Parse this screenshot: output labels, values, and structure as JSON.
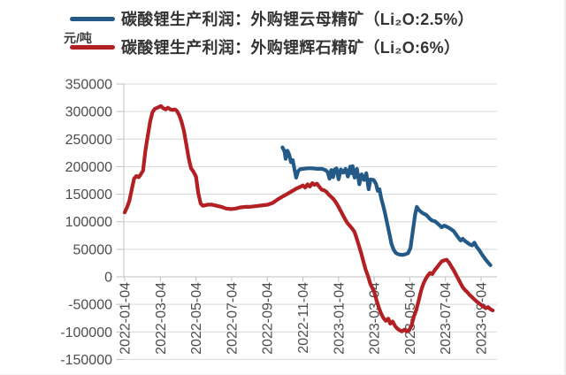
{
  "page": {
    "background": "#ffffff"
  },
  "chart_data": {
    "type": "line",
    "title": "",
    "unit_label": "元/吨",
    "grid": true,
    "legend_position": "top-left",
    "colors": {
      "grid": "#D9D9D9",
      "axis": "#BFBFBF",
      "tick_text": "#4D4D4D"
    },
    "y_axis": {
      "min": -150000,
      "max": 350000,
      "tick_step": 50000,
      "ticks": [
        350000,
        300000,
        250000,
        200000,
        150000,
        100000,
        50000,
        0,
        -50000,
        -100000,
        -150000
      ]
    },
    "x_axis": {
      "ticks": [
        "2022-01-04",
        "2022-03-04",
        "2022-05-04",
        "2022-07-04",
        "2022-09-04",
        "2022-11-04",
        "2023-01-04",
        "2023-03-04",
        "2023-05-04",
        "2023-07-04",
        "2023-09-04"
      ]
    },
    "series": [
      {
        "name": "碳酸锂生产利润：外购锂云母精矿（Li₂O:2.5%）",
        "color": "#235A87",
        "points": [
          [
            "2022-09-30",
            235000
          ],
          [
            "2022-10-03",
            228000
          ],
          [
            "2022-10-05",
            214000
          ],
          [
            "2022-10-08",
            229000
          ],
          [
            "2022-10-11",
            222000
          ],
          [
            "2022-10-14",
            208000
          ],
          [
            "2022-10-17",
            212000
          ],
          [
            "2022-10-20",
            196000
          ],
          [
            "2022-10-23",
            180000
          ],
          [
            "2022-10-26",
            191000
          ],
          [
            "2022-10-29",
            195000
          ],
          [
            "2022-11-04",
            196000
          ],
          [
            "2022-11-12",
            197000
          ],
          [
            "2022-11-20",
            197000
          ],
          [
            "2022-11-28",
            196000
          ],
          [
            "2022-12-06",
            196000
          ],
          [
            "2022-12-12",
            194000
          ],
          [
            "2022-12-16",
            190000
          ],
          [
            "2022-12-19",
            178000
          ],
          [
            "2022-12-22",
            194000
          ],
          [
            "2022-12-25",
            181000
          ],
          [
            "2022-12-28",
            195000
          ],
          [
            "2022-12-31",
            197000
          ],
          [
            "2023-01-04",
            177000
          ],
          [
            "2023-01-08",
            195000
          ],
          [
            "2023-01-12",
            189000
          ],
          [
            "2023-01-16",
            196000
          ],
          [
            "2023-01-20",
            182000
          ],
          [
            "2023-01-24",
            200000
          ],
          [
            "2023-01-26",
            188000
          ],
          [
            "2023-01-28",
            201000
          ],
          [
            "2023-02-01",
            180000
          ],
          [
            "2023-02-05",
            196000
          ],
          [
            "2023-02-09",
            168000
          ],
          [
            "2023-02-13",
            186000
          ],
          [
            "2023-02-17",
            176000
          ],
          [
            "2023-02-21",
            188000
          ],
          [
            "2023-02-25",
            159000
          ],
          [
            "2023-02-28",
            177000
          ],
          [
            "2023-03-03",
            176000
          ],
          [
            "2023-03-07",
            169000
          ],
          [
            "2023-03-10",
            156000
          ],
          [
            "2023-03-13",
            159000
          ],
          [
            "2023-03-16",
            143000
          ],
          [
            "2023-03-19",
            131000
          ],
          [
            "2023-03-22",
            118000
          ],
          [
            "2023-03-25",
            103000
          ],
          [
            "2023-03-28",
            88000
          ],
          [
            "2023-03-31",
            73000
          ],
          [
            "2023-04-03",
            60000
          ],
          [
            "2023-04-07",
            49000
          ],
          [
            "2023-04-11",
            43000
          ],
          [
            "2023-04-15",
            41000
          ],
          [
            "2023-04-19",
            40000
          ],
          [
            "2023-04-23",
            40000
          ],
          [
            "2023-04-27",
            41000
          ],
          [
            "2023-05-01",
            43000
          ],
          [
            "2023-05-05",
            52000
          ],
          [
            "2023-05-09",
            82000
          ],
          [
            "2023-05-13",
            113000
          ],
          [
            "2023-05-16",
            127000
          ],
          [
            "2023-05-19",
            122000
          ],
          [
            "2023-05-23",
            118000
          ],
          [
            "2023-05-27",
            115000
          ],
          [
            "2023-05-31",
            113000
          ],
          [
            "2023-06-04",
            110000
          ],
          [
            "2023-06-08",
            105000
          ],
          [
            "2023-06-12",
            102000
          ],
          [
            "2023-06-16",
            101000
          ],
          [
            "2023-06-20",
            98000
          ],
          [
            "2023-06-24",
            94000
          ],
          [
            "2023-06-28",
            90000
          ],
          [
            "2023-07-02",
            93000
          ],
          [
            "2023-07-06",
            91000
          ],
          [
            "2023-07-10",
            89000
          ],
          [
            "2023-07-14",
            86000
          ],
          [
            "2023-07-18",
            83000
          ],
          [
            "2023-07-22",
            77000
          ],
          [
            "2023-07-26",
            71000
          ],
          [
            "2023-07-30",
            66000
          ],
          [
            "2023-08-03",
            69000
          ],
          [
            "2023-08-07",
            65000
          ],
          [
            "2023-08-11",
            62000
          ],
          [
            "2023-08-15",
            59000
          ],
          [
            "2023-08-19",
            57000
          ],
          [
            "2023-08-23",
            62000
          ],
          [
            "2023-08-27",
            54000
          ],
          [
            "2023-08-31",
            49000
          ],
          [
            "2023-09-04",
            43000
          ],
          [
            "2023-09-08",
            37000
          ],
          [
            "2023-09-12",
            31000
          ],
          [
            "2023-09-16",
            26000
          ],
          [
            "2023-09-20",
            21000
          ]
        ]
      },
      {
        "name": "碳酸锂生产利润：外购锂辉石精矿（Li₂O:6%）",
        "color": "#B22024",
        "points": [
          [
            "2022-01-04",
            117000
          ],
          [
            "2022-01-08",
            126000
          ],
          [
            "2022-01-12",
            138000
          ],
          [
            "2022-01-16",
            158000
          ],
          [
            "2022-01-20",
            178000
          ],
          [
            "2022-01-24",
            183000
          ],
          [
            "2022-01-28",
            181000
          ],
          [
            "2022-02-01",
            186000
          ],
          [
            "2022-02-05",
            193000
          ],
          [
            "2022-02-09",
            230000
          ],
          [
            "2022-02-13",
            256000
          ],
          [
            "2022-02-17",
            282000
          ],
          [
            "2022-02-21",
            299000
          ],
          [
            "2022-02-25",
            305000
          ],
          [
            "2022-03-01",
            308000
          ],
          [
            "2022-03-05",
            310000
          ],
          [
            "2022-03-09",
            306000
          ],
          [
            "2022-03-13",
            304000
          ],
          [
            "2022-03-17",
            307000
          ],
          [
            "2022-03-21",
            304000
          ],
          [
            "2022-03-25",
            303000
          ],
          [
            "2022-03-29",
            304000
          ],
          [
            "2022-04-02",
            301000
          ],
          [
            "2022-04-06",
            293000
          ],
          [
            "2022-04-10",
            281000
          ],
          [
            "2022-04-14",
            264000
          ],
          [
            "2022-04-18",
            240000
          ],
          [
            "2022-04-22",
            215000
          ],
          [
            "2022-04-26",
            197000
          ],
          [
            "2022-04-30",
            191000
          ],
          [
            "2022-05-04",
            182000
          ],
          [
            "2022-05-08",
            152000
          ],
          [
            "2022-05-12",
            133000
          ],
          [
            "2022-05-16",
            129000
          ],
          [
            "2022-05-24",
            131000
          ],
          [
            "2022-06-01",
            131000
          ],
          [
            "2022-06-09",
            129000
          ],
          [
            "2022-06-17",
            127000
          ],
          [
            "2022-06-25",
            124000
          ],
          [
            "2022-07-03",
            123000
          ],
          [
            "2022-07-11",
            124000
          ],
          [
            "2022-07-19",
            126000
          ],
          [
            "2022-07-27",
            127000
          ],
          [
            "2022-08-04",
            127000
          ],
          [
            "2022-08-12",
            128000
          ],
          [
            "2022-08-20",
            129000
          ],
          [
            "2022-08-28",
            130000
          ],
          [
            "2022-09-05",
            131000
          ],
          [
            "2022-09-13",
            134000
          ],
          [
            "2022-09-21",
            140000
          ],
          [
            "2022-09-29",
            145000
          ],
          [
            "2022-10-07",
            150000
          ],
          [
            "2022-10-15",
            155000
          ],
          [
            "2022-10-23",
            160000
          ],
          [
            "2022-10-31",
            164000
          ],
          [
            "2022-11-04",
            166000
          ],
          [
            "2022-11-08",
            162000
          ],
          [
            "2022-11-12",
            168000
          ],
          [
            "2022-11-16",
            164000
          ],
          [
            "2022-11-20",
            170000
          ],
          [
            "2022-11-24",
            167000
          ],
          [
            "2022-11-28",
            169000
          ],
          [
            "2022-12-02",
            163000
          ],
          [
            "2022-12-06",
            158000
          ],
          [
            "2022-12-10",
            157000
          ],
          [
            "2022-12-14",
            154000
          ],
          [
            "2022-12-18",
            149000
          ],
          [
            "2022-12-22",
            145000
          ],
          [
            "2022-12-26",
            141000
          ],
          [
            "2022-12-30",
            135000
          ],
          [
            "2023-01-03",
            129000
          ],
          [
            "2023-01-07",
            121000
          ],
          [
            "2023-01-11",
            113000
          ],
          [
            "2023-01-15",
            105000
          ],
          [
            "2023-01-19",
            98000
          ],
          [
            "2023-01-23",
            93000
          ],
          [
            "2023-01-27",
            88000
          ],
          [
            "2023-01-31",
            82000
          ],
          [
            "2023-02-04",
            72000
          ],
          [
            "2023-02-08",
            58000
          ],
          [
            "2023-02-12",
            44000
          ],
          [
            "2023-02-16",
            28000
          ],
          [
            "2023-02-20",
            13000
          ],
          [
            "2023-02-24",
            1000
          ],
          [
            "2023-02-28",
            -13000
          ],
          [
            "2023-03-04",
            -27000
          ],
          [
            "2023-03-08",
            -42000
          ],
          [
            "2023-03-12",
            -56000
          ],
          [
            "2023-03-16",
            -67000
          ],
          [
            "2023-03-20",
            -75000
          ],
          [
            "2023-03-24",
            -80000
          ],
          [
            "2023-03-28",
            -76000
          ],
          [
            "2023-04-01",
            -85000
          ],
          [
            "2023-04-05",
            -81000
          ],
          [
            "2023-04-09",
            -89000
          ],
          [
            "2023-04-13",
            -94000
          ],
          [
            "2023-04-17",
            -97000
          ],
          [
            "2023-04-21",
            -99000
          ],
          [
            "2023-04-25",
            -96000
          ],
          [
            "2023-04-29",
            -99000
          ],
          [
            "2023-05-03",
            -97000
          ],
          [
            "2023-05-07",
            -88000
          ],
          [
            "2023-05-11",
            -72000
          ],
          [
            "2023-05-15",
            -60000
          ],
          [
            "2023-05-19",
            -44000
          ],
          [
            "2023-05-23",
            -26000
          ],
          [
            "2023-05-27",
            -13000
          ],
          [
            "2023-05-31",
            -4000
          ],
          [
            "2023-06-04",
            2000
          ],
          [
            "2023-06-08",
            7000
          ],
          [
            "2023-06-12",
            5000
          ],
          [
            "2023-06-16",
            12000
          ],
          [
            "2023-06-20",
            17000
          ],
          [
            "2023-06-24",
            23000
          ],
          [
            "2023-06-28",
            28000
          ],
          [
            "2023-07-02",
            30000
          ],
          [
            "2023-07-06",
            31000
          ],
          [
            "2023-07-10",
            26000
          ],
          [
            "2023-07-14",
            19000
          ],
          [
            "2023-07-18",
            12000
          ],
          [
            "2023-07-22",
            4000
          ],
          [
            "2023-07-26",
            -4000
          ],
          [
            "2023-07-30",
            -12000
          ],
          [
            "2023-08-03",
            -19000
          ],
          [
            "2023-08-07",
            -24000
          ],
          [
            "2023-08-11",
            -28000
          ],
          [
            "2023-08-15",
            -33000
          ],
          [
            "2023-08-19",
            -37000
          ],
          [
            "2023-08-23",
            -41000
          ],
          [
            "2023-08-27",
            -45000
          ],
          [
            "2023-08-31",
            -48000
          ],
          [
            "2023-09-04",
            -51000
          ],
          [
            "2023-09-08",
            -54000
          ],
          [
            "2023-09-12",
            -57000
          ],
          [
            "2023-09-16",
            -55000
          ],
          [
            "2023-09-20",
            -59000
          ],
          [
            "2023-09-24",
            -61000
          ]
        ]
      }
    ]
  }
}
